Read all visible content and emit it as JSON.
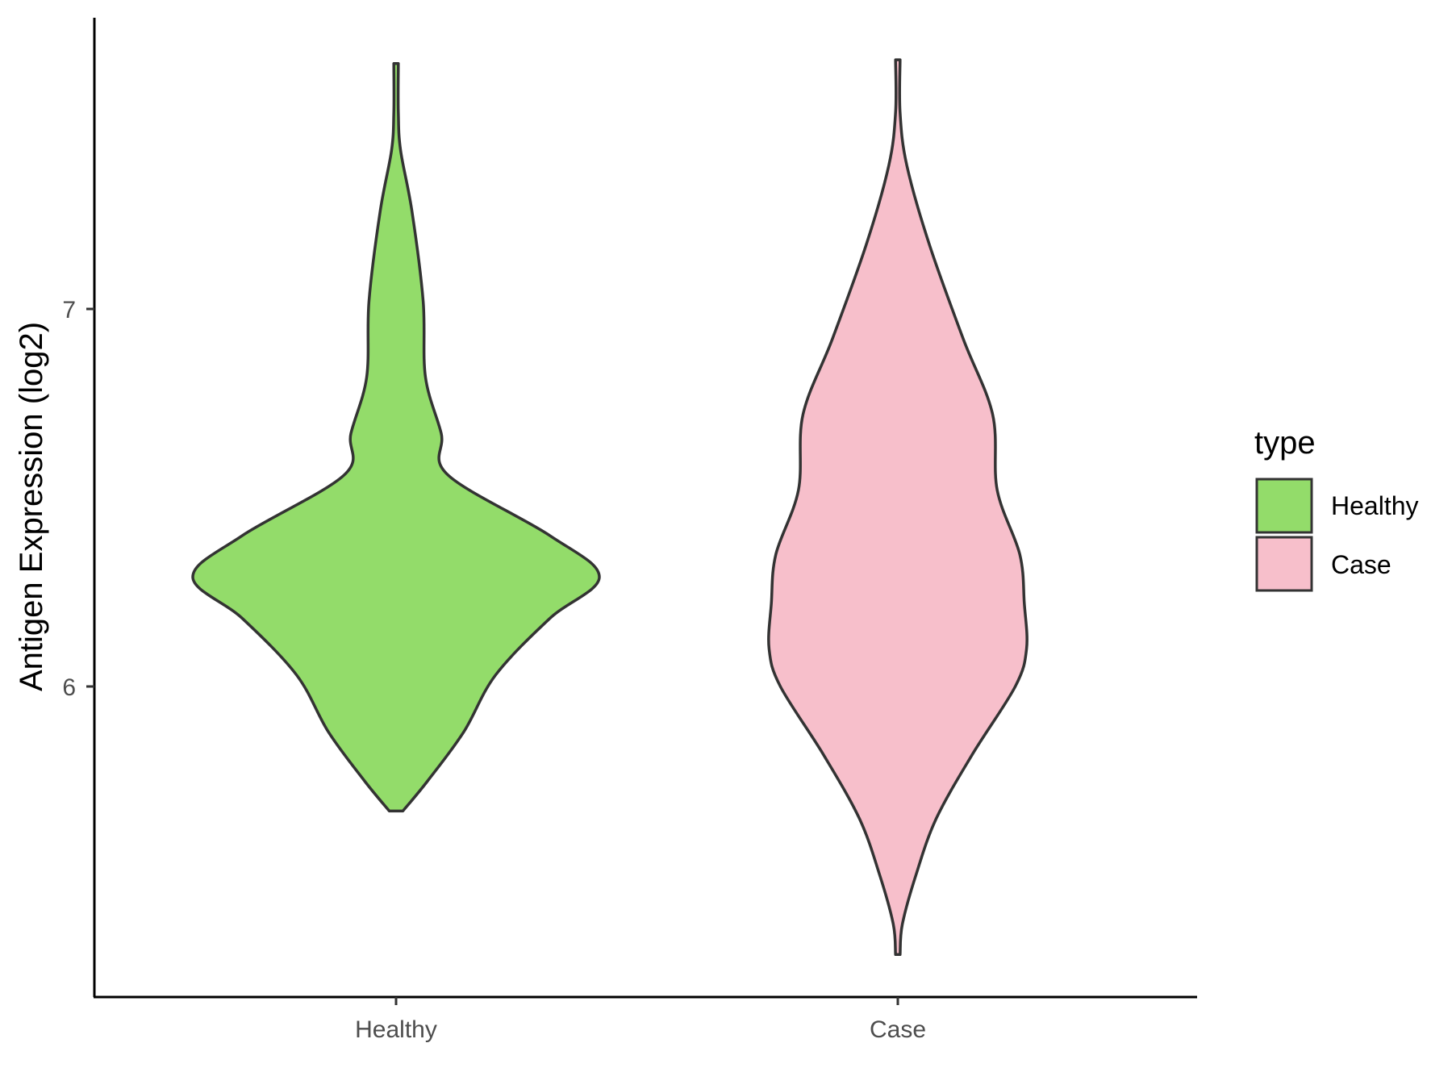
{
  "chart_data": {
    "type": "violin",
    "title": "",
    "xlabel": "",
    "ylabel": "Antigen Expression (log2)",
    "ylim": [
      5.2,
      7.78
    ],
    "y_ticks": [
      6,
      7
    ],
    "y_tick_labels": [
      "6",
      "7"
    ],
    "categories": [
      "Healthy",
      "Case"
    ],
    "grid": false,
    "legend": {
      "title": "type",
      "position": "right",
      "entries": [
        {
          "label": "Healthy",
          "color": "#93dc6a"
        },
        {
          "label": "Case",
          "color": "#f7bfcb"
        }
      ]
    },
    "series": [
      {
        "category": "Healthy",
        "color": "#93dc6a",
        "outline": "#333333",
        "min": 5.67,
        "max": 7.65,
        "density_profile": [
          [
            5.67,
            0.03
          ],
          [
            5.75,
            0.14
          ],
          [
            5.88,
            0.3
          ],
          [
            6.03,
            0.44
          ],
          [
            6.18,
            0.68
          ],
          [
            6.29,
            0.9
          ],
          [
            6.4,
            0.68
          ],
          [
            6.56,
            0.23
          ],
          [
            6.67,
            0.2
          ],
          [
            6.82,
            0.13
          ],
          [
            7.02,
            0.12
          ],
          [
            7.26,
            0.07
          ],
          [
            7.42,
            0.02
          ],
          [
            7.52,
            0.01
          ],
          [
            7.65,
            0.01
          ]
        ]
      },
      {
        "category": "Case",
        "color": "#f7bfcb",
        "outline": "#333333",
        "min": 5.29,
        "max": 7.66,
        "density_profile": [
          [
            5.29,
            0.01
          ],
          [
            5.37,
            0.02
          ],
          [
            5.5,
            0.08
          ],
          [
            5.65,
            0.17
          ],
          [
            5.82,
            0.33
          ],
          [
            6.0,
            0.52
          ],
          [
            6.1,
            0.57
          ],
          [
            6.22,
            0.56
          ],
          [
            6.35,
            0.54
          ],
          [
            6.52,
            0.44
          ],
          [
            6.72,
            0.42
          ],
          [
            6.92,
            0.29
          ],
          [
            7.17,
            0.14
          ],
          [
            7.38,
            0.04
          ],
          [
            7.52,
            0.01
          ],
          [
            7.66,
            0.01
          ]
        ]
      }
    ]
  }
}
